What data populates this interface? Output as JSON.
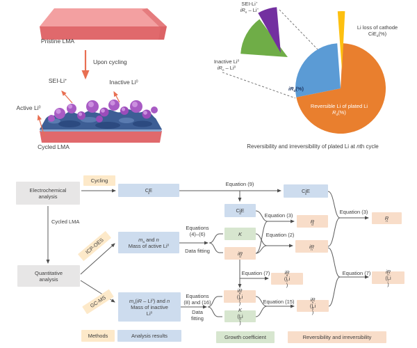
{
  "panel_a": {
    "pristine_label": "Pristine LMA",
    "upon_cycling": "Upon cycling",
    "sei_label": "SEI-Li^{+}",
    "inactive_label": "Inactive Li^{0}",
    "active_label": "Active Li^{0}",
    "cycled_label": "Cycled LMA"
  },
  "pie": {
    "purple_line1": "SEI-Li^{+}",
    "purple_line2": "*iR*_{n} – Li^{+}",
    "yellow_line1": "Li loss of cathode",
    "yellow_line2": "CiE_{d}(%)",
    "green_line1": "Inactive Li^{0}",
    "green_line2": "*iR*_{n} – Li^{0}",
    "blue_label": "*iR*_{d}(%)",
    "orange_line1": "Reversible Li of plated Li",
    "orange_line2": "*R*_{d}(%)",
    "caption": "Reversibility and irreversibility of plated Li at *n*th cycle"
  },
  "chart_data": {
    "type": "pie",
    "title": "Reversibility and irreversibility of plated Li at nth cycle",
    "units": "%",
    "slices": [
      {
        "label": "Reversible Li of plated Li Rd(%)",
        "value": 71,
        "color": "#e97f2e"
      },
      {
        "label": "iRd(%)",
        "value": 27,
        "color": "#5b9bd5"
      },
      {
        "label": "Li loss of cathode CiEd(%)",
        "value": 2,
        "color": "#fdc010"
      }
    ],
    "exploded_breakdown_of_iRd": [
      {
        "label": "Inactive Li0 (iRn – Li0)",
        "value": 18,
        "color": "#6fad47"
      },
      {
        "label": "SEI-Li+ (iRn – Li+)",
        "value": 9,
        "color": "#7330a0"
      }
    ],
    "legend_position": "callout-labels"
  },
  "flowchart": {
    "nodes": {
      "electro_1": "Electrochemical",
      "electro_2": "analysis",
      "quant_1": "Quantitative",
      "quant_2": "analysis",
      "cycling": "Cycling",
      "icp": "ICP-OES",
      "gcms": "GC-MS",
      "cycled_lma": "Cycled LMA",
      "ce_n": "CE_{n}",
      "cie_n": "CiE_{n}",
      "cie_d": "CiE_{d}",
      "k": "*K*",
      "ir_d": "*iR*_{d}",
      "r_d": "*R*_{d}",
      "ir_n": "*iR*_{n}",
      "r_n": "*R*_{n}",
      "ma_1": "*m*_{a} and *n*",
      "ma_2": "Mass of active Li^{0}",
      "ms_1": "*m*_{s}(*iR* – Li^{0}) and *n*",
      "ms_2": "Mass of inactive",
      "ms_3": "Li^{0}",
      "ird_lip": "*iR*_{d}(Li^{+})",
      "ird_li0": "*iR*_{d}(Li^{0})",
      "k_li0": "*K*(Li^{0})",
      "irn_li0": "*iR*_{n}(Li^{0})",
      "irn_lip": "*iR*_{n}(Li^{+})"
    },
    "edges": {
      "eq9": "Equation (9)",
      "eq3a": "Equation (3)",
      "eq3b": "Equation (3)",
      "eq2": "Equation (2)",
      "eq7a": "Equation (7)",
      "eq7b": "Equation (7)",
      "eq15": "Equation (15)",
      "eq46_1": "Equations",
      "eq46_2": "(4)–(6)",
      "eq816_1": "Equations",
      "eq816_2": "(8) and (16)",
      "datafit1": "Data fitting",
      "datafit2_1": "Data",
      "datafit2_2": "fitting"
    },
    "legend": {
      "methods": "Methods",
      "analysis": "Analysis results",
      "growth": "Growth coefficient",
      "reversibility": "Reversibility and irreversibility"
    }
  },
  "colors": {
    "methods_bg": "#fde9c9",
    "analysis_bg": "#cddcee",
    "growth_bg": "#d7e6cf",
    "reversibility_bg": "#f8ddc9",
    "gray_bg": "#e7e6e6",
    "pie_orange": "#e97f2e",
    "pie_blue": "#5b9bd5",
    "pie_yellow": "#fdc010",
    "pie_green": "#6fad47",
    "pie_purple": "#7330a0",
    "slab_pink": "#e0696c",
    "arrow_orange": "#e86f52",
    "electrode_blue": "#3d5e95",
    "li_purple": "#a85bc4"
  }
}
